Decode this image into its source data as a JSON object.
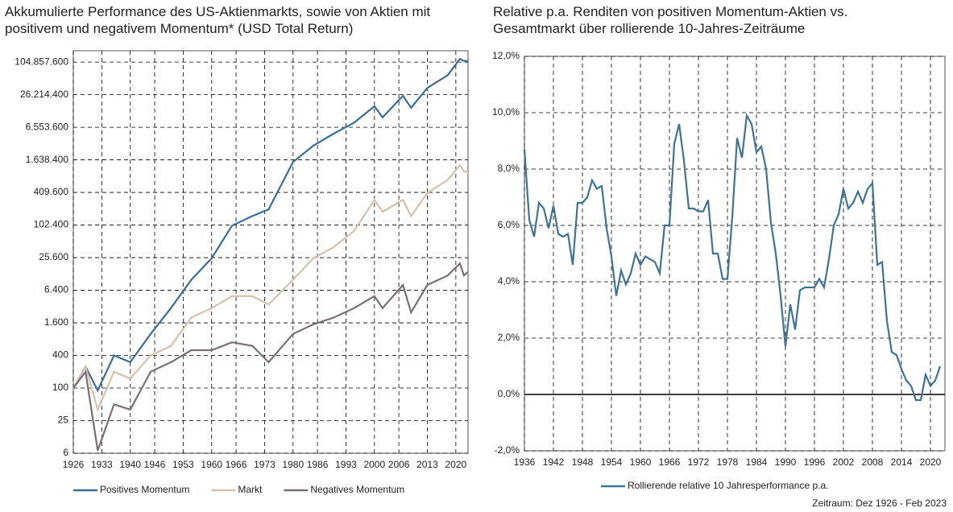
{
  "chart_data": [
    {
      "type": "line",
      "title": "Akkumulierte Performance des US-Aktienmarkts, sowie von Aktien mit positivem und negativem Momentum* (USD Total Return)",
      "log_scale": true,
      "grid": true,
      "legend": "bottom",
      "x": [
        1926,
        1929,
        1932,
        1936,
        1940,
        1945,
        1950,
        1955,
        1960,
        1965,
        1970,
        1974,
        1980,
        1985,
        1990,
        1995,
        2000,
        2002,
        2007,
        2009,
        2013,
        2018,
        2021,
        2022,
        2023
      ],
      "series": [
        {
          "name": "Positives Momentum",
          "color": "#3a6e96",
          "values": [
            100,
            250,
            90,
            400,
            300,
            1000,
            3000,
            10000,
            25000,
            100000,
            150000,
            200000,
            1500000,
            3000000,
            5000000,
            8000000,
            16000000,
            10000000,
            25000000,
            15000000,
            35000000,
            60000000,
            120000000,
            110000000,
            110000000
          ]
        },
        {
          "name": "Markt",
          "color": "#d4c2ad",
          "values": [
            100,
            250,
            40,
            200,
            150,
            400,
            600,
            2000,
            3000,
            5000,
            5000,
            3500,
            10000,
            25000,
            40000,
            80000,
            300000,
            180000,
            300000,
            150000,
            400000,
            700000,
            1300000,
            1000000,
            1000000
          ]
        },
        {
          "name": "Negatives Momentum",
          "color": "#7b7070",
          "values": [
            100,
            200,
            7,
            50,
            40,
            200,
            300,
            500,
            500,
            700,
            600,
            300,
            1000,
            1500,
            2000,
            3000,
            5000,
            3000,
            8000,
            2500,
            8000,
            12000,
            20000,
            12000,
            14000
          ]
        }
      ],
      "xlim": [
        1926,
        2023
      ],
      "xticks": [
        1926,
        1933,
        1940,
        1946,
        1953,
        1960,
        1966,
        1973,
        1980,
        1986,
        1993,
        2000,
        2006,
        2013,
        2020
      ],
      "ylim": [
        6.25,
        170000000
      ],
      "yticks": [
        {
          "value": 6.25,
          "label": "6"
        },
        25,
        100,
        400,
        {
          "value": 1600,
          "label": "1.600"
        },
        {
          "value": 6400,
          "label": "6.400"
        },
        {
          "value": 25600,
          "label": "25.600"
        },
        {
          "value": 102400,
          "label": "102.400"
        },
        {
          "value": 409600,
          "label": "409.600"
        },
        {
          "value": 1638400,
          "label": "1.638.400"
        },
        {
          "value": 6553600,
          "label": "6.553.600"
        },
        {
          "value": 26214400,
          "label": "26.214.400"
        },
        {
          "value": 104857600,
          "label": "104.857.600"
        }
      ]
    },
    {
      "type": "line",
      "title": "Relative p.a. Renditen von positiven Momentum-Aktien vs. Gesamtmarkt über rollierende 10-Jahres-Zeiträume",
      "log_scale": false,
      "grid": true,
      "legend": "bottom",
      "x": [
        1936,
        1937,
        1938,
        1939,
        1940,
        1941,
        1942,
        1943,
        1944,
        1945,
        1946,
        1947,
        1948,
        1949,
        1950,
        1951,
        1952,
        1953,
        1954,
        1955,
        1956,
        1957,
        1958,
        1959,
        1960,
        1961,
        1962,
        1963,
        1964,
        1965,
        1966,
        1967,
        1968,
        1969,
        1970,
        1971,
        1972,
        1973,
        1974,
        1975,
        1976,
        1977,
        1978,
        1979,
        1980,
        1981,
        1982,
        1983,
        1984,
        1985,
        1986,
        1987,
        1988,
        1989,
        1990,
        1991,
        1992,
        1993,
        1994,
        1995,
        1996,
        1997,
        1998,
        1999,
        2000,
        2001,
        2002,
        2003,
        2004,
        2005,
        2006,
        2007,
        2008,
        2009,
        2010,
        2011,
        2012,
        2013,
        2014,
        2015,
        2016,
        2017,
        2018,
        2019,
        2020,
        2021,
        2022
      ],
      "series": [
        {
          "name": "Rollierende relative 10 Jahresperformance p.a.",
          "color": "#3f7394",
          "values": [
            8.7,
            6.2,
            5.6,
            6.8,
            6.6,
            5.9,
            6.7,
            5.7,
            5.6,
            5.7,
            4.6,
            6.8,
            6.8,
            7.0,
            7.6,
            7.3,
            7.4,
            5.9,
            4.9,
            3.5,
            4.4,
            3.9,
            4.3,
            5.0,
            4.6,
            4.9,
            4.8,
            4.7,
            4.3,
            6.0,
            6.0,
            8.9,
            9.6,
            8.3,
            6.6,
            6.6,
            6.5,
            6.5,
            6.9,
            5.0,
            5.0,
            4.1,
            4.1,
            6.3,
            9.1,
            8.4,
            9.9,
            9.6,
            8.6,
            8.8,
            8.0,
            6.1,
            5.0,
            3.5,
            1.7,
            3.2,
            2.3,
            3.7,
            3.8,
            3.8,
            3.8,
            4.1,
            3.8,
            4.8,
            6.0,
            6.4,
            7.3,
            6.6,
            6.8,
            7.2,
            6.8,
            7.3,
            7.5,
            4.6,
            4.7,
            2.6,
            1.5,
            1.4,
            0.9,
            0.5,
            0.3,
            -0.2,
            -0.2,
            0.7,
            0.3,
            0.5,
            1.0
          ]
        }
      ],
      "xlim": [
        1936,
        2023
      ],
      "xticks": [
        1936,
        1942,
        1948,
        1954,
        1960,
        1966,
        1972,
        1978,
        1984,
        1990,
        1996,
        2002,
        2008,
        2014,
        2020
      ],
      "ylim": [
        -2,
        12
      ],
      "yticks": [
        {
          "value": -2,
          "label": "-2,0%"
        },
        {
          "value": 0,
          "label": "0,0%"
        },
        {
          "value": 2,
          "label": "2,0%"
        },
        {
          "value": 4,
          "label": "4,0%"
        },
        {
          "value": 6,
          "label": "6,0%"
        },
        {
          "value": 8,
          "label": "8,0%"
        },
        {
          "value": 10,
          "label": "10,0%"
        },
        {
          "value": 12,
          "label": "12,0%"
        }
      ]
    }
  ],
  "footnote": "Zeitraum: Dez 1926 - Feb 2023"
}
